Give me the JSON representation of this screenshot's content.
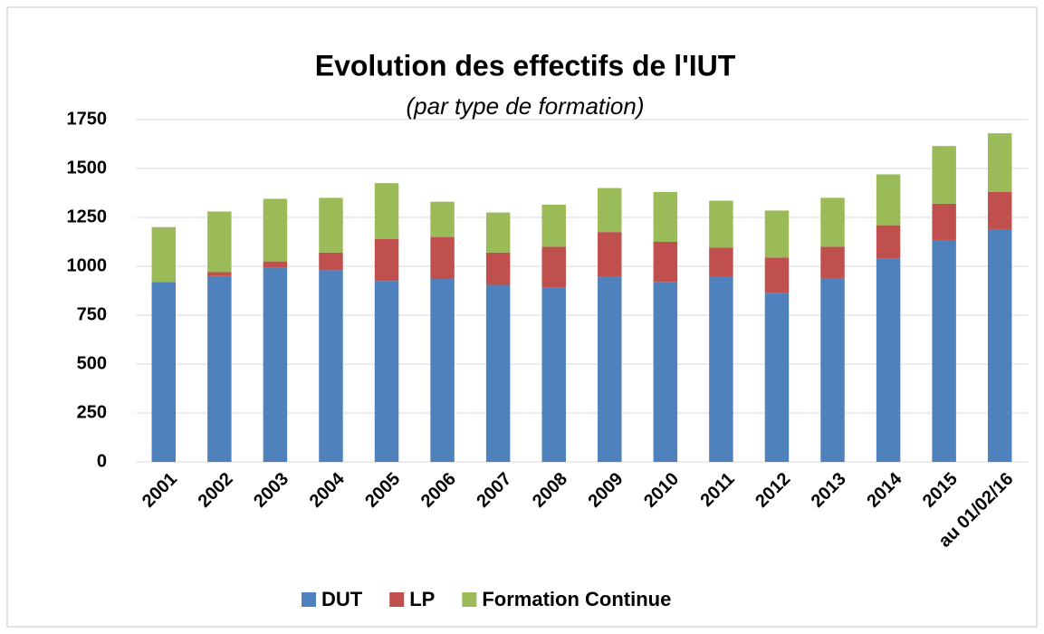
{
  "chart_data": {
    "type": "stacked_bar",
    "title": "Evolution des effectifs de l'IUT",
    "subtitle": "(par type de formation)",
    "categories": [
      "2001",
      "2002",
      "2003",
      "2004",
      "2005",
      "2006",
      "2007",
      "2008",
      "2009",
      "2010",
      "2011",
      "2012",
      "2013",
      "2014",
      "2015",
      "au 01/02/16"
    ],
    "series": [
      {
        "name": "DUT",
        "color": "#4f81bd",
        "values": [
          920,
          950,
          995,
          980,
          925,
          935,
          905,
          890,
          945,
          920,
          945,
          865,
          940,
          1040,
          1130,
          1190
        ]
      },
      {
        "name": "LP",
        "color": "#c0504d",
        "values": [
          0,
          20,
          30,
          90,
          215,
          215,
          165,
          210,
          230,
          205,
          150,
          180,
          160,
          170,
          190,
          190
        ]
      },
      {
        "name": "Formation Continue",
        "color": "#9bbb59",
        "values": [
          280,
          310,
          320,
          280,
          285,
          180,
          205,
          215,
          225,
          255,
          240,
          240,
          250,
          260,
          295,
          300
        ]
      }
    ],
    "ylim": [
      0,
      1750
    ],
    "yticks": [
      0,
      250,
      500,
      750,
      1000,
      1250,
      1500,
      1750
    ],
    "grid": true,
    "legend": "bottom"
  }
}
